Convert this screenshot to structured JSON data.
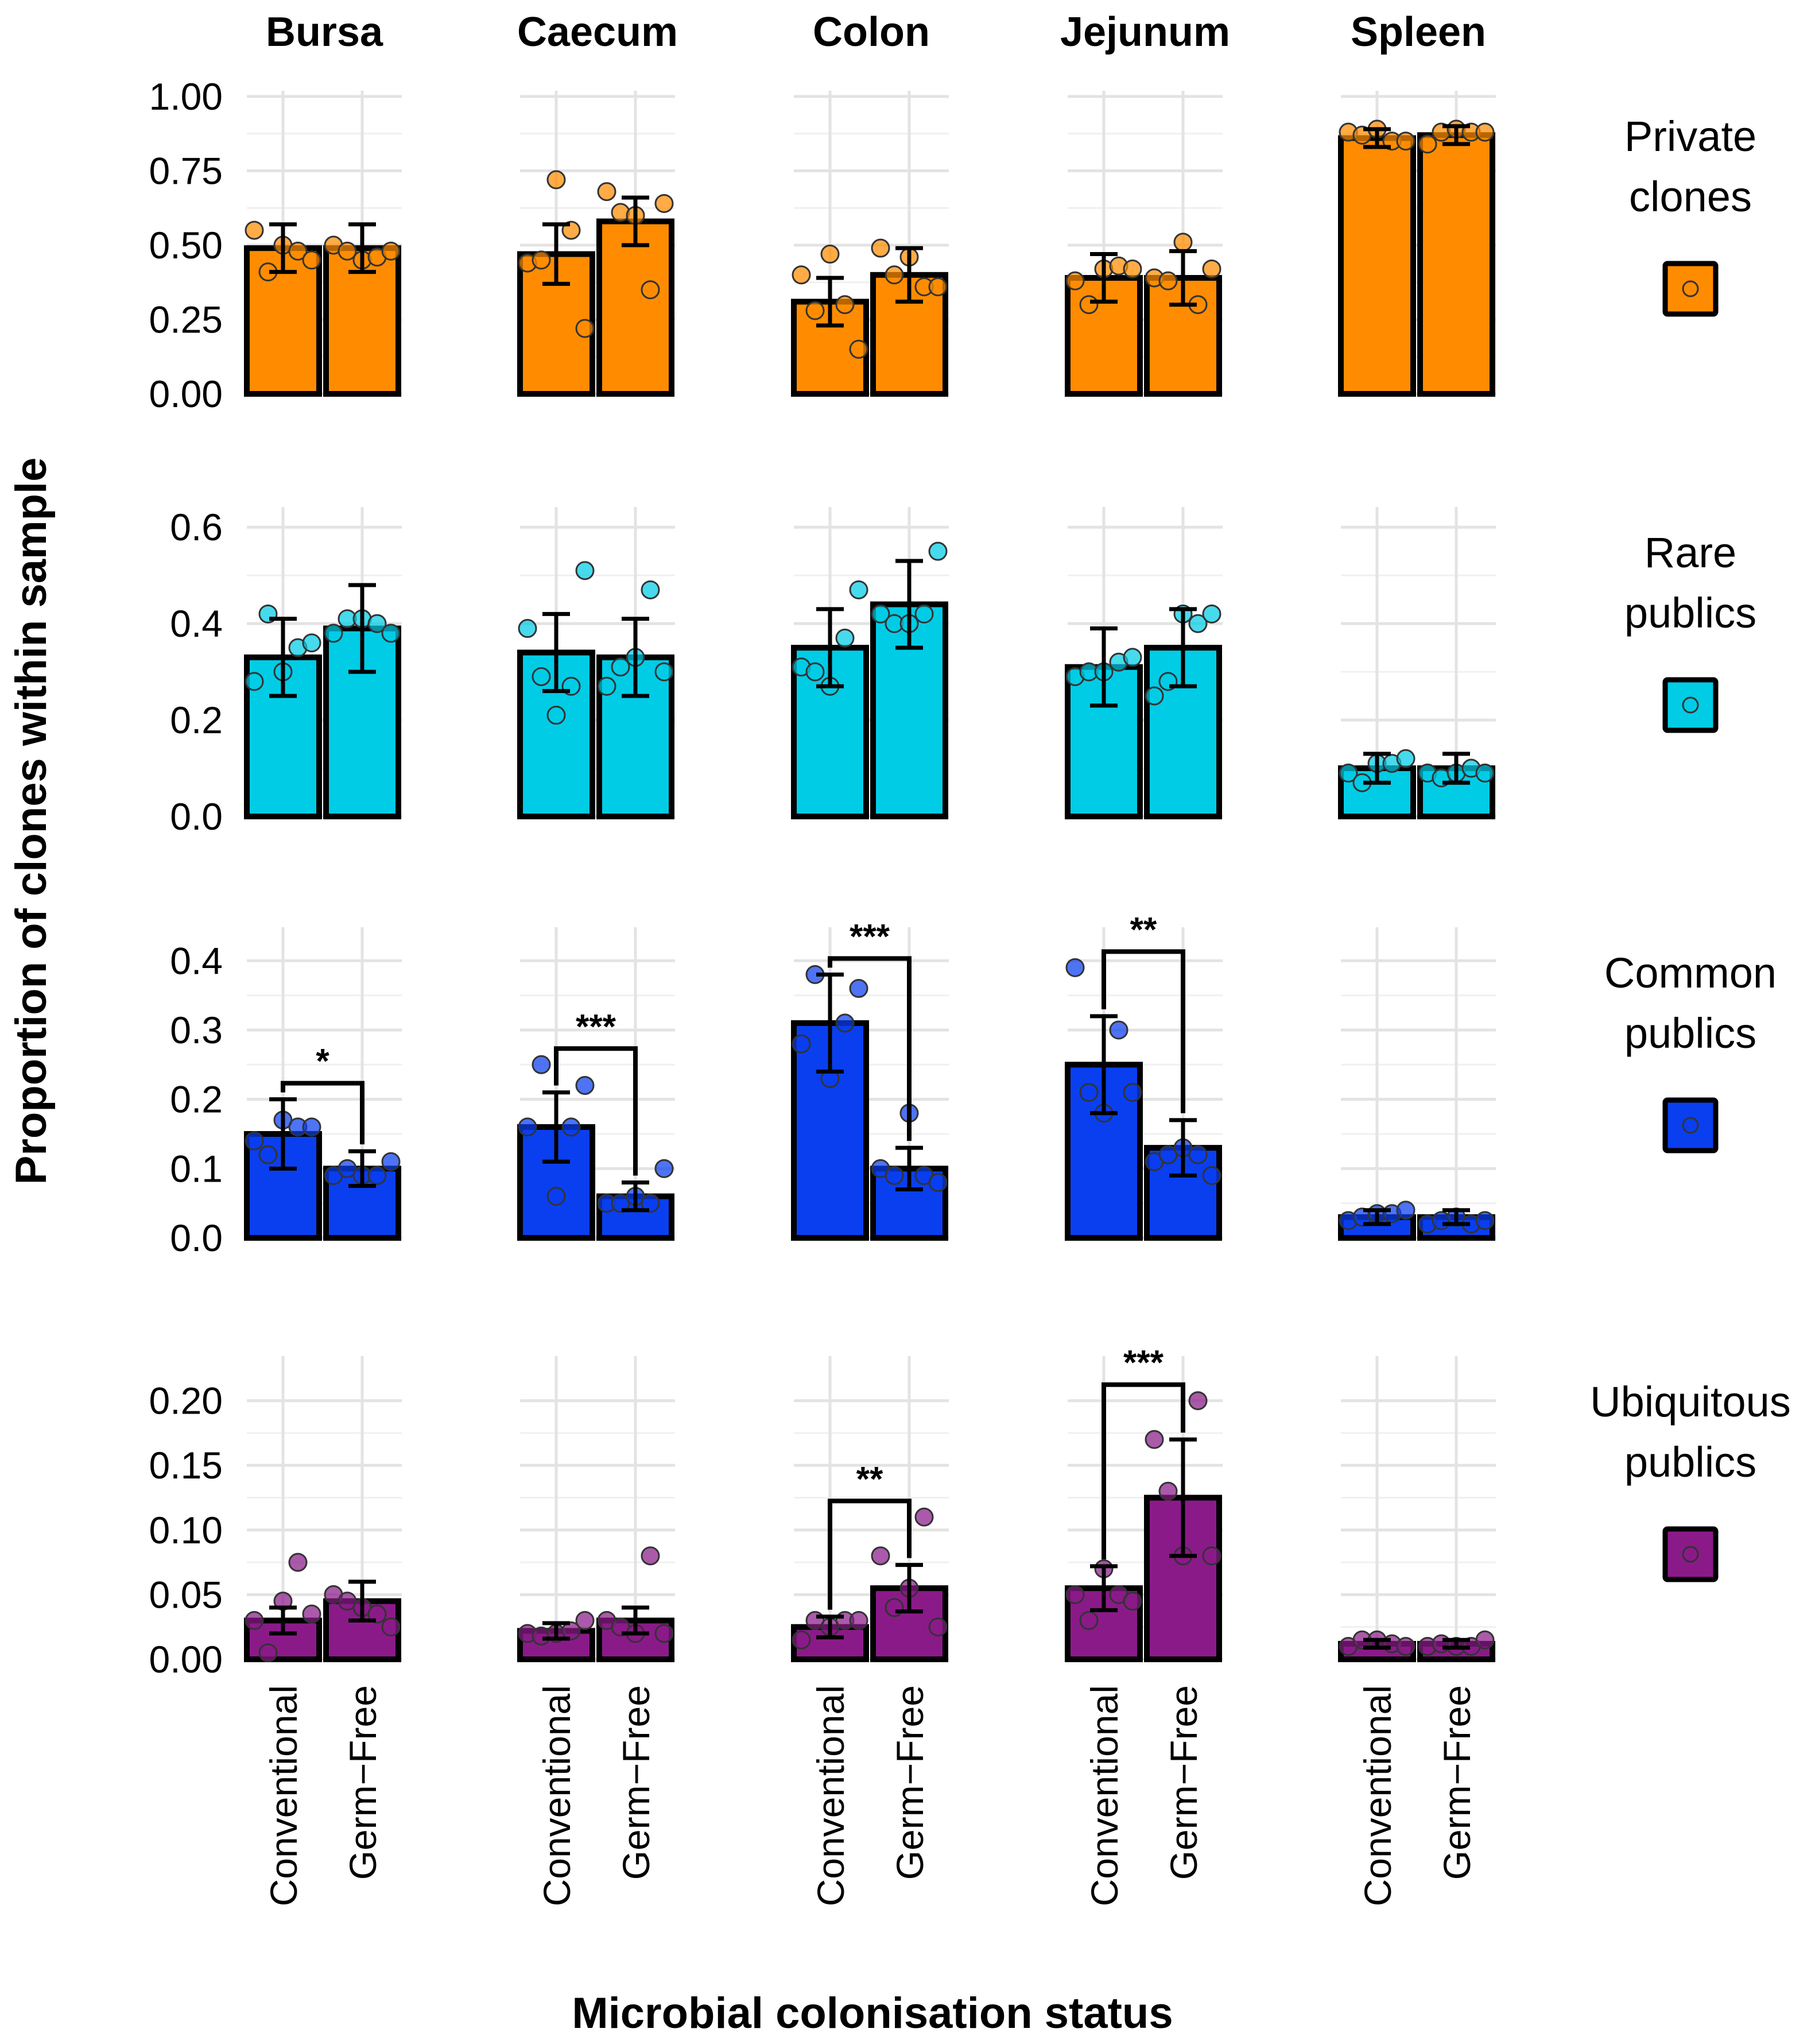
{
  "chart_data": {
    "type": "bar",
    "x_label": "Microbial colonisation status",
    "y_label": "Proportion of clones within sample",
    "tissues": [
      "Bursa",
      "Caecum",
      "Colon",
      "Jejunum",
      "Spleen"
    ],
    "conditions": [
      "Conventional",
      "Germ−Free"
    ],
    "rows": [
      {
        "label_lines": [
          "Private",
          "clones"
        ],
        "color": "#FF8C00",
        "ylim": [
          0,
          1.0
        ],
        "ticks": [
          0,
          0.25,
          0.5,
          0.75,
          1.0
        ],
        "tick_labels": [
          "0.00",
          "0.25",
          "0.50",
          "0.75",
          "1.00"
        ],
        "means": [
          [
            0.49,
            0.49
          ],
          [
            0.47,
            0.58
          ],
          [
            0.31,
            0.4
          ],
          [
            0.39,
            0.39
          ],
          [
            0.86,
            0.87
          ]
        ],
        "errors": [
          [
            0.08,
            0.08
          ],
          [
            0.1,
            0.08
          ],
          [
            0.08,
            0.09
          ],
          [
            0.08,
            0.09
          ],
          [
            0.03,
            0.03
          ]
        ],
        "points": [
          [
            [
              0.55,
              0.41,
              0.5,
              0.48,
              0.45
            ],
            [
              0.5,
              0.48,
              0.45,
              0.46,
              0.48
            ]
          ],
          [
            [
              0.44,
              0.45,
              0.72,
              0.55,
              0.22
            ],
            [
              0.68,
              0.61,
              0.6,
              0.35,
              0.64
            ]
          ],
          [
            [
              0.4,
              0.28,
              0.47,
              0.3,
              0.15
            ],
            [
              0.49,
              0.4,
              0.46,
              0.36,
              0.36
            ]
          ],
          [
            [
              0.38,
              0.3,
              0.42,
              0.43,
              0.42
            ],
            [
              0.39,
              0.38,
              0.51,
              0.3,
              0.42
            ]
          ],
          [
            [
              0.88,
              0.87,
              0.89,
              0.85,
              0.85
            ],
            [
              0.84,
              0.88,
              0.89,
              0.88,
              0.88
            ]
          ]
        ],
        "significance": [
          null,
          null,
          null,
          null,
          null
        ]
      },
      {
        "label_lines": [
          "Rare",
          "publics"
        ],
        "color": "#00CCE6",
        "ylim": [
          0,
          0.63
        ],
        "ticks": [
          0,
          0.2,
          0.4,
          0.6
        ],
        "tick_labels": [
          "0.0",
          "0.2",
          "0.4",
          "0.6"
        ],
        "means": [
          [
            0.33,
            0.39
          ],
          [
            0.34,
            0.33
          ],
          [
            0.35,
            0.44
          ],
          [
            0.31,
            0.35
          ],
          [
            0.1,
            0.1
          ]
        ],
        "errors": [
          [
            0.08,
            0.09
          ],
          [
            0.08,
            0.08
          ],
          [
            0.08,
            0.09
          ],
          [
            0.08,
            0.08
          ],
          [
            0.03,
            0.03
          ]
        ],
        "points": [
          [
            [
              0.28,
              0.42,
              0.3,
              0.35,
              0.36
            ],
            [
              0.38,
              0.41,
              0.41,
              0.4,
              0.38
            ]
          ],
          [
            [
              0.39,
              0.29,
              0.21,
              0.27,
              0.51
            ],
            [
              0.27,
              0.31,
              0.33,
              0.47,
              0.3
            ]
          ],
          [
            [
              0.31,
              0.3,
              0.27,
              0.37,
              0.47
            ],
            [
              0.42,
              0.4,
              0.4,
              0.42,
              0.55
            ]
          ],
          [
            [
              0.29,
              0.3,
              0.3,
              0.32,
              0.33
            ],
            [
              0.25,
              0.28,
              0.42,
              0.4,
              0.42
            ]
          ],
          [
            [
              0.09,
              0.07,
              0.11,
              0.11,
              0.12
            ],
            [
              0.09,
              0.08,
              0.09,
              0.1,
              0.09
            ]
          ]
        ],
        "significance": [
          null,
          null,
          null,
          null,
          null
        ]
      },
      {
        "label_lines": [
          "Common",
          "publics"
        ],
        "color": "#0A3FF0",
        "ylim": [
          0,
          0.44
        ],
        "ticks": [
          0,
          0.1,
          0.2,
          0.3,
          0.4
        ],
        "tick_labels": [
          "0.0",
          "0.1",
          "0.2",
          "0.3",
          "0.4"
        ],
        "means": [
          [
            0.15,
            0.1
          ],
          [
            0.16,
            0.06
          ],
          [
            0.31,
            0.1
          ],
          [
            0.25,
            0.13
          ],
          [
            0.03,
            0.03
          ]
        ],
        "errors": [
          [
            0.05,
            0.025
          ],
          [
            0.05,
            0.02
          ],
          [
            0.07,
            0.03
          ],
          [
            0.07,
            0.04
          ],
          [
            0.01,
            0.01
          ]
        ],
        "points": [
          [
            [
              0.14,
              0.12,
              0.17,
              0.16,
              0.16
            ],
            [
              0.09,
              0.1,
              0.09,
              0.09,
              0.11
            ]
          ],
          [
            [
              0.16,
              0.25,
              0.06,
              0.16,
              0.22
            ],
            [
              0.05,
              0.05,
              0.06,
              0.05,
              0.1
            ]
          ],
          [
            [
              0.28,
              0.38,
              0.23,
              0.31,
              0.36
            ],
            [
              0.1,
              0.09,
              0.18,
              0.09,
              0.08
            ]
          ],
          [
            [
              0.39,
              0.21,
              0.18,
              0.3,
              0.21
            ],
            [
              0.11,
              0.12,
              0.13,
              0.12,
              0.09
            ]
          ],
          [
            [
              0.025,
              0.03,
              0.035,
              0.035,
              0.04
            ],
            [
              0.02,
              0.025,
              0.03,
              0.02,
              0.025
            ]
          ]
        ],
        "significance": [
          "*",
          "***",
          "***",
          "**",
          null
        ]
      },
      {
        "label_lines": [
          "Ubiquitous",
          "publics"
        ],
        "color": "#8B1A89",
        "ylim": [
          0,
          0.23
        ],
        "ticks": [
          0,
          0.05,
          0.1,
          0.15,
          0.2
        ],
        "tick_labels": [
          "0.00",
          "0.05",
          "0.10",
          "0.15",
          "0.20"
        ],
        "means": [
          [
            0.03,
            0.045
          ],
          [
            0.022,
            0.03
          ],
          [
            0.025,
            0.055
          ],
          [
            0.055,
            0.125
          ],
          [
            0.012,
            0.012
          ]
        ],
        "errors": [
          [
            0.01,
            0.015
          ],
          [
            0.006,
            0.01
          ],
          [
            0.008,
            0.018
          ],
          [
            0.017,
            0.045
          ],
          [
            0.003,
            0.003
          ]
        ],
        "points": [
          [
            [
              0.03,
              0.005,
              0.045,
              0.075,
              0.035
            ],
            [
              0.05,
              0.045,
              0.04,
              0.035,
              0.025
            ]
          ],
          [
            [
              0.02,
              0.018,
              0.02,
              0.022,
              0.03
            ],
            [
              0.03,
              0.025,
              0.02,
              0.08,
              0.02
            ]
          ],
          [
            [
              0.015,
              0.03,
              0.025,
              0.03,
              0.03
            ],
            [
              0.08,
              0.04,
              0.055,
              0.11,
              0.025
            ]
          ],
          [
            [
              0.05,
              0.03,
              0.07,
              0.05,
              0.045
            ],
            [
              0.17,
              0.13,
              0.08,
              0.2,
              0.08
            ]
          ],
          [
            [
              0.01,
              0.015,
              0.015,
              0.012,
              0.01
            ],
            [
              0.01,
              0.012,
              0.01,
              0.01,
              0.015
            ]
          ]
        ],
        "significance": [
          null,
          null,
          "**",
          "***",
          null
        ]
      }
    ]
  }
}
